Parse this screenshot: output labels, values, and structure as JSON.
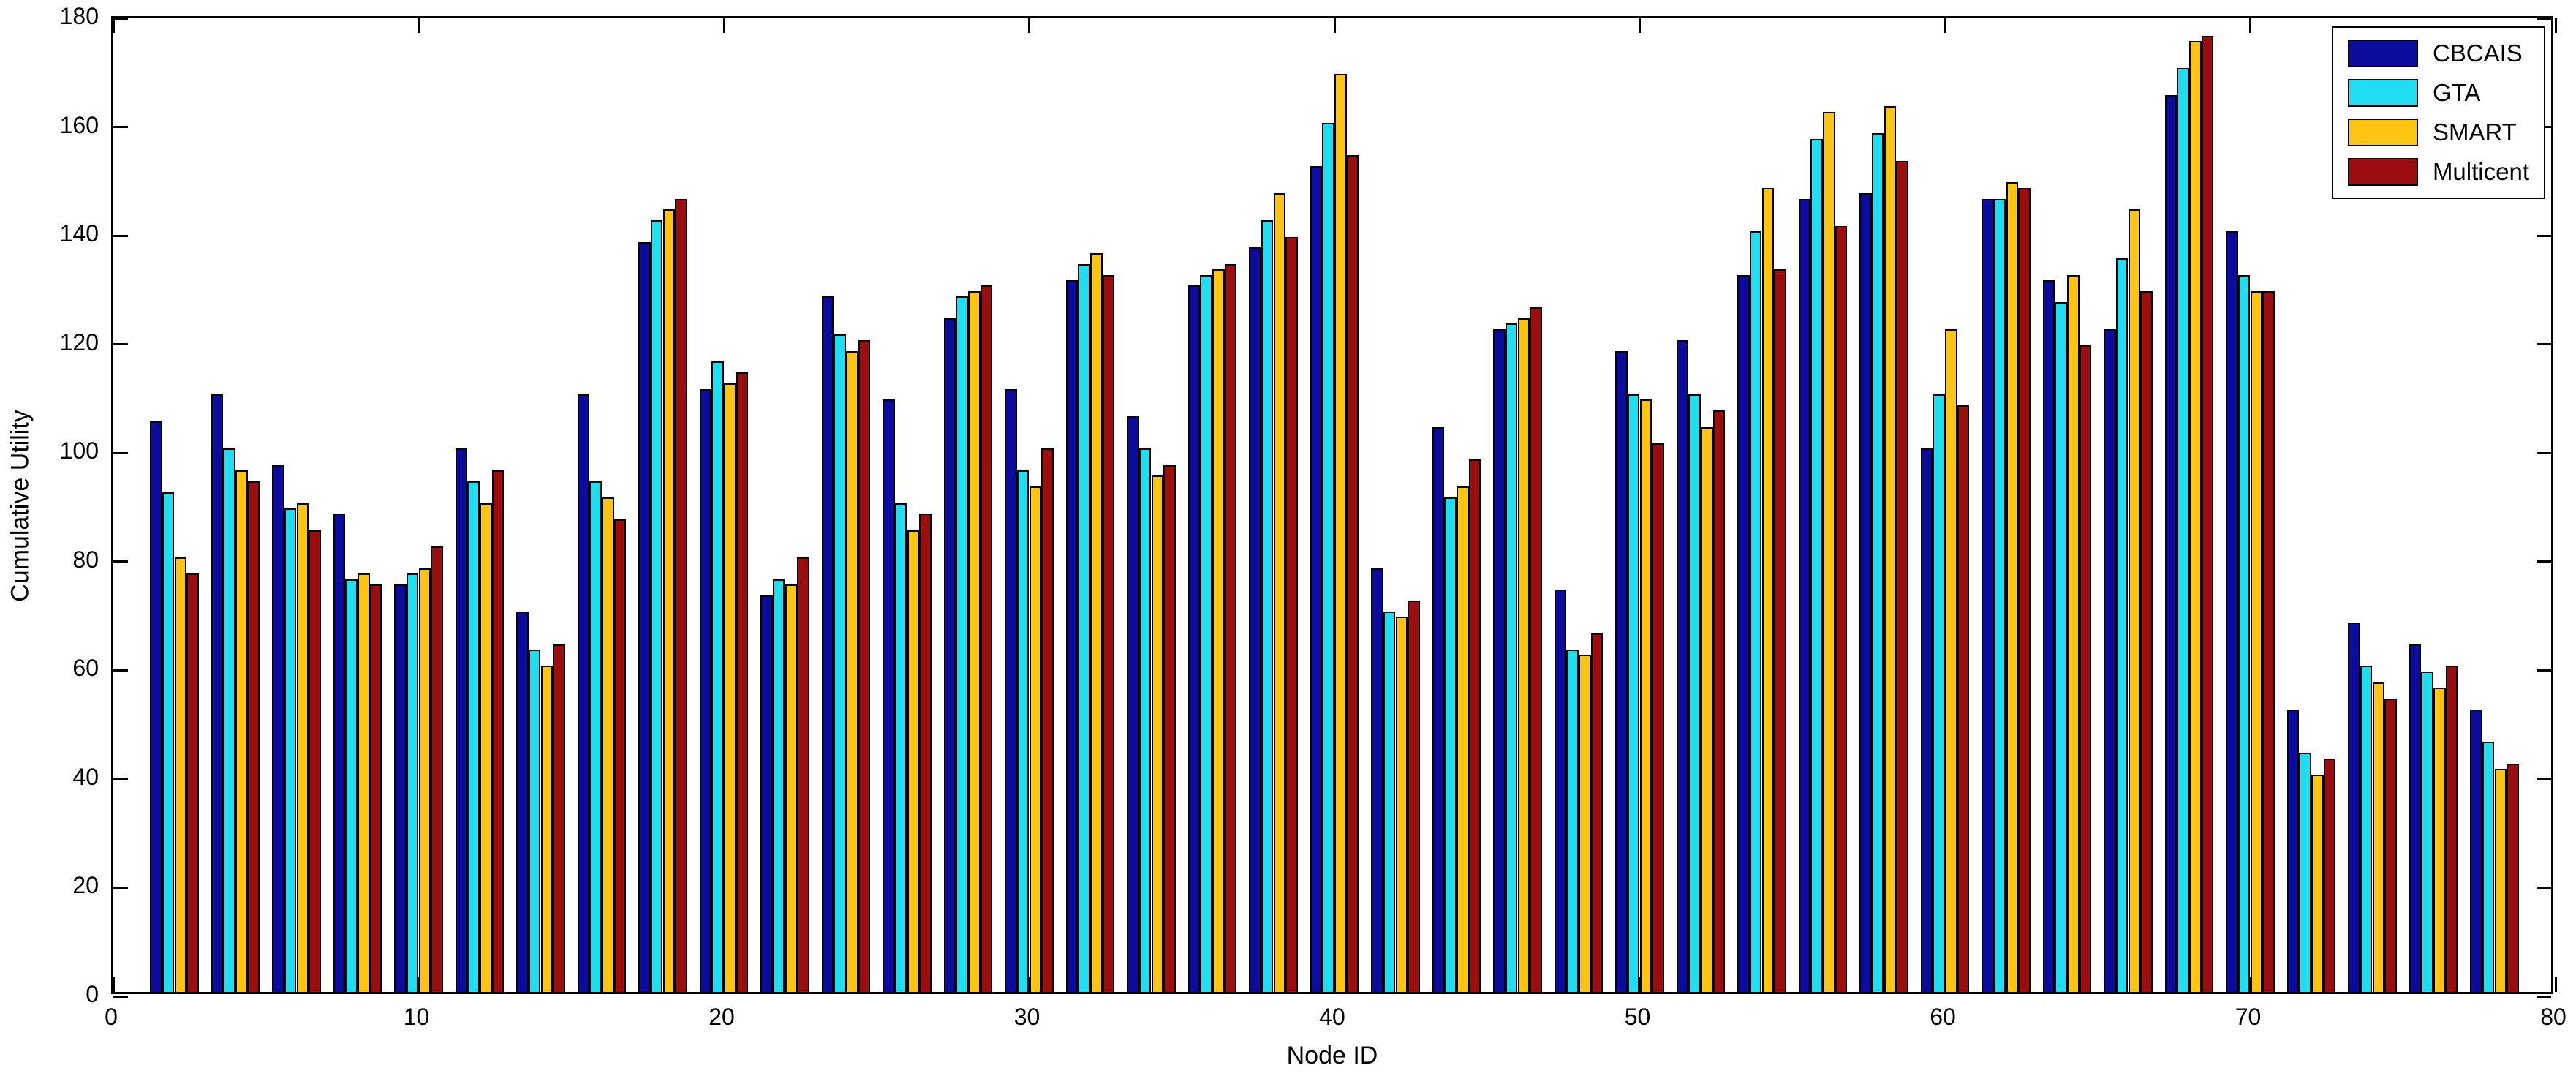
{
  "figure": {
    "background": "#ffffff",
    "axis_color": "#000000"
  },
  "chart_data": {
    "type": "bar",
    "title": "",
    "xlabel": "Node ID",
    "ylabel": "Cumulative Utility",
    "xlim": [
      0,
      80
    ],
    "ylim": [
      0,
      180
    ],
    "x_ticks": [
      0,
      10,
      20,
      30,
      40,
      50,
      60,
      70,
      80
    ],
    "y_ticks": [
      0,
      20,
      40,
      60,
      80,
      100,
      120,
      140,
      160,
      180
    ],
    "grid": false,
    "legend_position": "top-right",
    "bar_group_total_width_units": 1.6,
    "categories": [
      2,
      4,
      6,
      8,
      10,
      12,
      14,
      16,
      18,
      20,
      22,
      24,
      26,
      28,
      30,
      32,
      34,
      36,
      38,
      40,
      42,
      44,
      46,
      48,
      50,
      52,
      54,
      56,
      58,
      60,
      62,
      64,
      66,
      68,
      70,
      72,
      74,
      76,
      78
    ],
    "series": [
      {
        "name": "CBCAIS",
        "color": "#0b0b9d",
        "values": [
          105,
          110,
          97,
          88,
          75,
          100,
          70,
          110,
          138,
          111,
          73,
          128,
          109,
          124,
          111,
          131,
          106,
          130,
          137,
          152,
          78,
          104,
          122,
          74,
          118,
          120,
          132,
          146,
          147,
          100,
          146,
          131,
          122,
          165,
          140,
          52,
          68,
          64,
          52
        ]
      },
      {
        "name": "GTA",
        "color": "#1fdef2",
        "values": [
          92,
          100,
          89,
          76,
          77,
          94,
          63,
          94,
          142,
          116,
          76,
          121,
          90,
          128,
          96,
          134,
          100,
          132,
          142,
          160,
          70,
          91,
          123,
          63,
          110,
          110,
          140,
          157,
          158,
          110,
          146,
          127,
          135,
          170,
          132,
          44,
          60,
          59,
          46
        ]
      },
      {
        "name": "SMART",
        "color": "#fdc412",
        "values": [
          80,
          96,
          90,
          77,
          78,
          90,
          60,
          91,
          144,
          112,
          75,
          118,
          85,
          129,
          93,
          136,
          95,
          133,
          147,
          169,
          69,
          93,
          124,
          62,
          109,
          104,
          148,
          162,
          163,
          122,
          149,
          132,
          144,
          175,
          129,
          40,
          57,
          56,
          41
        ]
      },
      {
        "name": "Multicent",
        "color": "#9c0d0d",
        "values": [
          77,
          94,
          85,
          75,
          82,
          96,
          64,
          87,
          146,
          114,
          80,
          120,
          88,
          130,
          100,
          132,
          97,
          134,
          139,
          154,
          72,
          98,
          126,
          66,
          101,
          107,
          133,
          141,
          153,
          108,
          148,
          119,
          129,
          176,
          129,
          43,
          54,
          60,
          42
        ]
      }
    ]
  }
}
